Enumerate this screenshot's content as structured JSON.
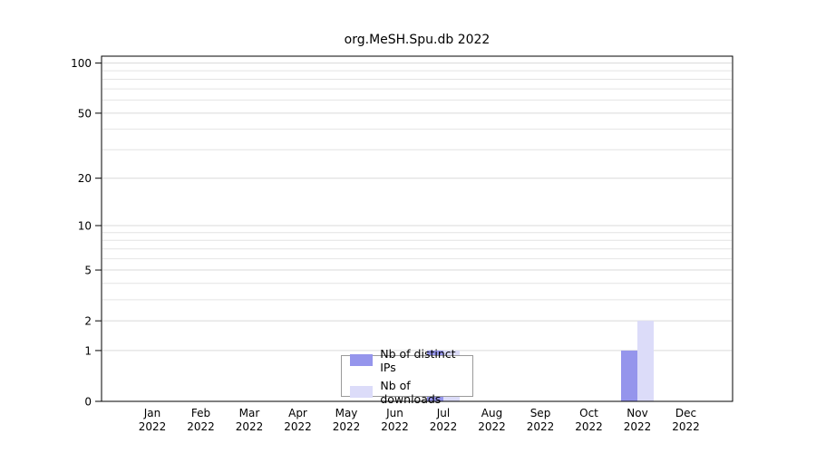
{
  "chart_data": {
    "type": "bar",
    "title": "org.MeSH.Spu.db 2022",
    "categories": [
      "Jan",
      "Feb",
      "Mar",
      "Apr",
      "May",
      "Jun",
      "Jul",
      "Aug",
      "Sep",
      "Oct",
      "Nov",
      "Dec"
    ],
    "x_year": "2022",
    "series": [
      {
        "name": "Nb of distinct IPs",
        "color": "#9595ec",
        "values": [
          0,
          0,
          0,
          0,
          0,
          0,
          1,
          0,
          0,
          0,
          1,
          0
        ]
      },
      {
        "name": "Nb of downloads",
        "color": "#dcdcf9",
        "values": [
          0,
          0,
          0,
          0,
          0,
          0,
          1,
          0,
          0,
          0,
          2,
          0
        ]
      }
    ],
    "yticks": [
      0,
      1,
      2,
      5,
      10,
      20,
      50,
      100
    ],
    "minor_gridlines": [
      1,
      2,
      3,
      4,
      5,
      6,
      7,
      8,
      9,
      10,
      20,
      30,
      40,
      50,
      60,
      70,
      80,
      90,
      100
    ],
    "scale": "log1p",
    "ylim": [
      0,
      110
    ],
    "grid": "horizontal",
    "grid_color": "#e4e4e4",
    "axis_color": "#000000",
    "legend_position": "bottom-center-inside"
  }
}
